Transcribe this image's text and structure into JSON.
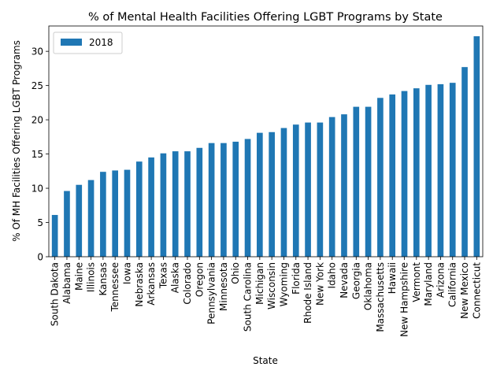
{
  "chart_data": {
    "type": "bar",
    "title": "% of Mental Health Facilities Offering LGBT Programs by State",
    "xlabel": "State",
    "ylabel": "% Of MH Facilities Offering LGBT Programs",
    "ylim": [
      0,
      33.7
    ],
    "yticks": [
      0,
      5,
      10,
      15,
      20,
      25,
      30
    ],
    "grid": false,
    "legend_position": "top-left",
    "colors": {
      "bar": "#1f77b4"
    },
    "categories": [
      "South Dakota",
      "Alabama",
      "Maine",
      "Illinois",
      "Kansas",
      "Tennessee",
      "Iowa",
      "Nebraska",
      "Arkansas",
      "Texas",
      "Alaska",
      "Colorado",
      "Oregon",
      "Pennsylvania",
      "Minnesota",
      "Ohio",
      "South Carolina",
      "Michigan",
      "Wisconsin",
      "Wyoming",
      "Florida",
      "Rhode Island",
      "New York",
      "Idaho",
      "Nevada",
      "Georgia",
      "Oklahoma",
      "Massachusetts",
      "Hawaii",
      "New Hampshire",
      "Vermont",
      "Maryland",
      "Arizona",
      "California",
      "New Mexico",
      "Connecticut"
    ],
    "series": [
      {
        "name": "2018",
        "values": [
          6.1,
          9.6,
          10.5,
          11.2,
          12.4,
          12.6,
          12.7,
          13.9,
          14.5,
          15.1,
          15.4,
          15.4,
          15.9,
          16.6,
          16.6,
          16.8,
          17.2,
          18.1,
          18.2,
          18.8,
          19.3,
          19.6,
          19.6,
          20.4,
          20.8,
          21.9,
          21.9,
          23.2,
          23.7,
          24.2,
          24.6,
          25.1,
          25.2,
          25.4,
          27.7,
          32.2
        ]
      }
    ]
  }
}
